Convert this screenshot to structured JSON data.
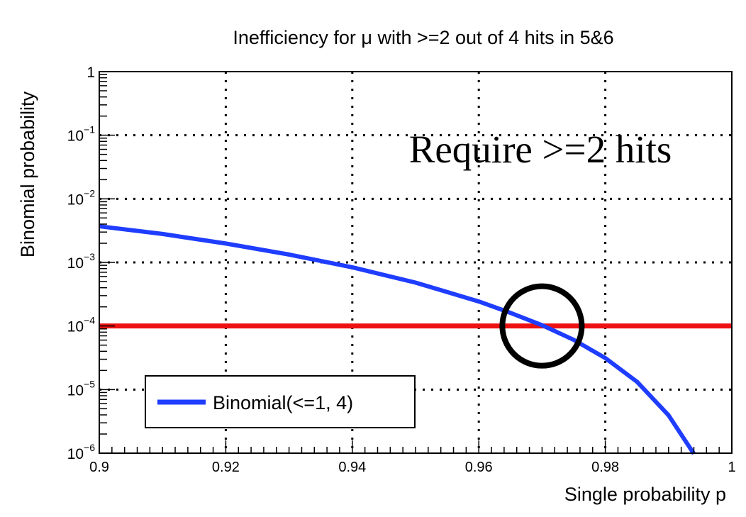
{
  "chart_data": {
    "type": "line",
    "title": "Inefficiency for μ with >=2 out of 4 hits in 5&6",
    "xlabel": "Single probability p",
    "ylabel": "Binomial probability",
    "xlim": [
      0.9,
      1.0
    ],
    "ylim": [
      1e-06,
      1
    ],
    "y_scale": "log",
    "grid": true,
    "x_ticks": [
      {
        "value": 0.9,
        "label": "0.9"
      },
      {
        "value": 0.92,
        "label": "0.92"
      },
      {
        "value": 0.94,
        "label": "0.94"
      },
      {
        "value": 0.96,
        "label": "0.96"
      },
      {
        "value": 0.98,
        "label": "0.98"
      },
      {
        "value": 1.0,
        "label": "1"
      }
    ],
    "y_ticks": [
      {
        "value": 1,
        "base": "1",
        "exp": ""
      },
      {
        "value": 0.1,
        "base": "10",
        "exp": "−1"
      },
      {
        "value": 0.01,
        "base": "10",
        "exp": "−2"
      },
      {
        "value": 0.001,
        "base": "10",
        "exp": "−3"
      },
      {
        "value": 0.0001,
        "base": "10",
        "exp": "−4"
      },
      {
        "value": 1e-05,
        "base": "10",
        "exp": "−5"
      },
      {
        "value": 1e-06,
        "base": "10",
        "exp": "−6"
      }
    ],
    "series": [
      {
        "name": "Binomial(<=1, 4)",
        "color": "#1f3dff",
        "x": [
          0.9,
          0.91,
          0.92,
          0.93,
          0.94,
          0.95,
          0.96,
          0.965,
          0.97,
          0.975,
          0.98,
          0.985,
          0.99,
          0.994
        ],
        "y": [
          0.0037,
          0.0028,
          0.00198,
          0.00133,
          0.000837,
          0.000481,
          0.000243,
          0.000161,
          0.000103,
          6.06e-05,
          3.13e-05,
          1.33e-05,
          3.94e-06,
          9.8e-07
        ]
      }
    ],
    "threshold_line": {
      "y": 0.0001,
      "color": "#ee1111"
    },
    "legend": {
      "position": "bottom-left",
      "label": "Binomial(<=1, 4)"
    },
    "annotation": {
      "text": "Require >=2 hits"
    },
    "marker_circle": {
      "x": 0.97,
      "y": 0.0001,
      "color": "#000000"
    }
  }
}
